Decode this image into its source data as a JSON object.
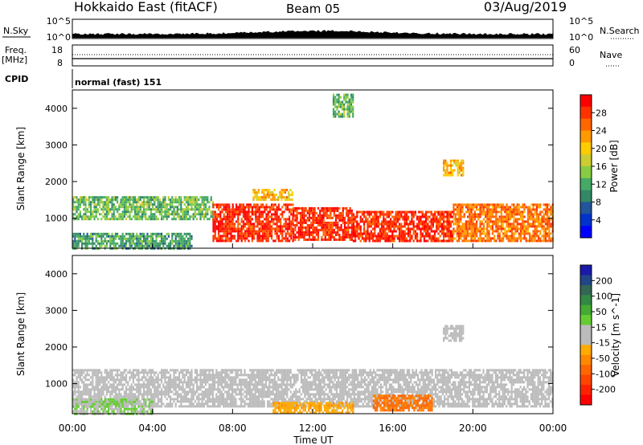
{
  "header": {
    "site": "Hokkaido East (fitACF)",
    "beam": "Beam 05",
    "date": "03/Aug/2019"
  },
  "panels": {
    "nsky_label": "N.Sky",
    "nsky_ticks": [
      "10^5",
      "10^0"
    ],
    "nsearch_label": "N.Search",
    "nsearch_ticks": [
      "10^5",
      "10^0"
    ],
    "freq_label": "Freq.",
    "freq_unit": "[MHz]",
    "freq_ticks": [
      "18",
      "8"
    ],
    "nave_label": "Nave",
    "nave_ticks": [
      "60",
      "0"
    ],
    "cpid_label": "CPID",
    "cpid_value": "normal (fast) 151"
  },
  "axes": {
    "y_label": "Slant Range [km]",
    "y_ticks": [
      "4000",
      "3000",
      "2000",
      "1000"
    ],
    "x_label": "Time UT",
    "x_ticks": [
      "00:00",
      "04:00",
      "08:00",
      "12:00",
      "16:00",
      "20:00",
      "00:00"
    ]
  },
  "colorbars": {
    "power_label": "Power [dB]",
    "power_ticks": [
      "28",
      "24",
      "20",
      "16",
      "12",
      "8",
      "4"
    ],
    "power_colors": [
      "#ff0000",
      "#ff3300",
      "#ff6600",
      "#ff9900",
      "#ffcc00",
      "#cccc33",
      "#88cc44",
      "#44aa66",
      "#338866",
      "#225599",
      "#0033cc",
      "#0000ff"
    ],
    "velocity_label": "Velocity [m s^-1]",
    "velocity_ticks": [
      "200",
      "100",
      "50",
      "15",
      "-15",
      "-50",
      "-100",
      "-200"
    ],
    "velocity_colors": [
      "#1a1aaa",
      "#224488",
      "#336655",
      "#338844",
      "#44aa33",
      "#66cc33",
      "#bbbbbb",
      "#bbbbbb",
      "#ffaa00",
      "#ff8800",
      "#ff6600",
      "#ff4400",
      "#ff2200",
      "#ff0000"
    ],
    "ground_scatter_color": "#bbbbbb"
  },
  "chart_data": [
    {
      "type": "heatmap",
      "title": "Power",
      "xlabel": "Time UT",
      "ylabel": "Slant Range [km]",
      "xlim": [
        "00:00",
        "24:00"
      ],
      "ylim": [
        180,
        4500
      ],
      "colorbar": {
        "label": "Power [dB]",
        "range": [
          0,
          30
        ]
      },
      "regions": [
        {
          "time": [
            "00:00",
            "07:00"
          ],
          "range_km": [
            1000,
            1600
          ],
          "power_db": 12
        },
        {
          "time": [
            "00:00",
            "06:00"
          ],
          "range_km": [
            200,
            600
          ],
          "power_db": 10
        },
        {
          "time": [
            "07:00",
            "11:00"
          ],
          "range_km": [
            400,
            1400
          ],
          "power_db": 28
        },
        {
          "time": [
            "11:00",
            "14:00"
          ],
          "range_km": [
            400,
            1300
          ],
          "power_db": 28
        },
        {
          "time": [
            "14:00",
            "19:00"
          ],
          "range_km": [
            400,
            1200
          ],
          "power_db": 28
        },
        {
          "time": [
            "19:00",
            "24:00"
          ],
          "range_km": [
            400,
            1400
          ],
          "power_db": 24
        },
        {
          "time": [
            "09:00",
            "11:00"
          ],
          "range_km": [
            1500,
            1800
          ],
          "power_db": 20
        },
        {
          "time": [
            "18:30",
            "19:30"
          ],
          "range_km": [
            2200,
            2600
          ],
          "power_db": 20
        },
        {
          "time": [
            "13:00",
            "14:00"
          ],
          "range_km": [
            3800,
            4400
          ],
          "power_db": 12
        }
      ]
    },
    {
      "type": "heatmap",
      "title": "Velocity",
      "xlabel": "Time UT",
      "ylabel": "Slant Range [km]",
      "xlim": [
        "00:00",
        "24:00"
      ],
      "ylim": [
        180,
        4500
      ],
      "colorbar": {
        "label": "Velocity [m s^-1]",
        "range": [
          -200,
          200
        ]
      },
      "regions": [
        {
          "time": [
            "00:00",
            "24:00"
          ],
          "range_km": [
            400,
            1400
          ],
          "velocity_ms": 0
        },
        {
          "time": [
            "10:00",
            "14:00"
          ],
          "range_km": [
            200,
            500
          ],
          "velocity_ms": -50
        },
        {
          "time": [
            "15:00",
            "18:00"
          ],
          "range_km": [
            300,
            700
          ],
          "velocity_ms": -100
        },
        {
          "time": [
            "18:30",
            "19:30"
          ],
          "range_km": [
            2200,
            2600
          ],
          "velocity_ms": 0
        },
        {
          "time": [
            "00:00",
            "04:00"
          ],
          "range_km": [
            200,
            600
          ],
          "velocity_ms": 30
        }
      ]
    }
  ]
}
